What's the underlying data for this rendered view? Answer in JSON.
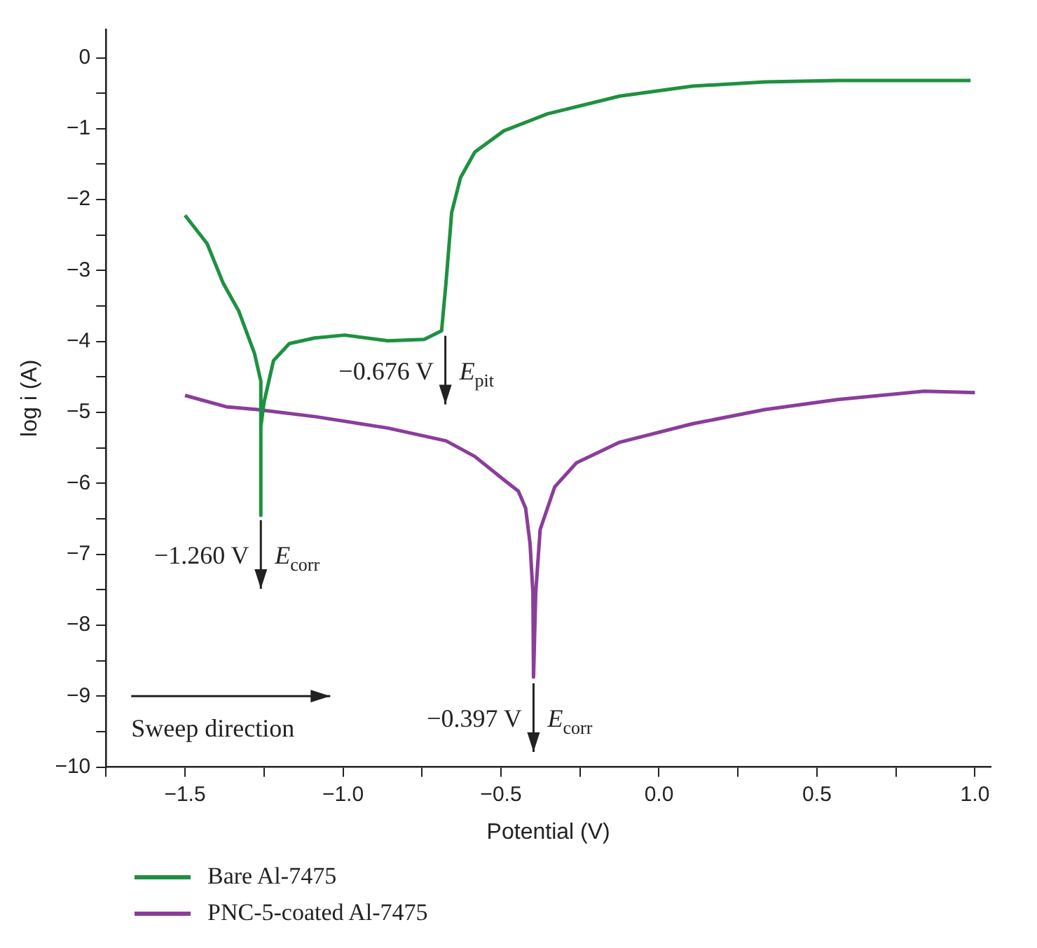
{
  "chart_data": {
    "type": "line",
    "xlabel": "Potential (V)",
    "ylabel": "log i (A)",
    "xlim": [
      -1.75,
      1.05
    ],
    "ylim": [
      -10,
      0.4
    ],
    "xticks": [
      {
        "value": -1.75,
        "label": null
      },
      {
        "value": -1.5,
        "label": "−1.5"
      },
      {
        "value": -1.25,
        "label": null
      },
      {
        "value": -1,
        "label": "−1.0"
      },
      {
        "value": -0.75,
        "label": null
      },
      {
        "value": -0.5,
        "label": "−0.5"
      },
      {
        "value": -0.25,
        "label": null
      },
      {
        "value": 0,
        "label": "0.0"
      },
      {
        "value": 0.25,
        "label": null
      },
      {
        "value": 0.5,
        "label": "0.5"
      },
      {
        "value": 0.75,
        "label": null
      },
      {
        "value": 1,
        "label": "1.0"
      }
    ],
    "yticks": [
      {
        "value": -10,
        "label": "−10"
      },
      {
        "value": -9.5,
        "label": null
      },
      {
        "value": -9,
        "label": "−9"
      },
      {
        "value": -8.5,
        "label": null
      },
      {
        "value": -8,
        "label": "−8"
      },
      {
        "value": -7.5,
        "label": null
      },
      {
        "value": -7,
        "label": "−7"
      },
      {
        "value": -6.5,
        "label": null
      },
      {
        "value": -6,
        "label": "−6"
      },
      {
        "value": -5.5,
        "label": null
      },
      {
        "value": -5,
        "label": "−5"
      },
      {
        "value": -4.5,
        "label": null
      },
      {
        "value": -4,
        "label": "−4"
      },
      {
        "value": -3.5,
        "label": null
      },
      {
        "value": -3,
        "label": "−3"
      },
      {
        "value": -2.5,
        "label": null
      },
      {
        "value": -2,
        "label": "−2"
      },
      {
        "value": -1.5,
        "label": null
      },
      {
        "value": -1,
        "label": "−1"
      },
      {
        "value": -0.5,
        "label": null
      },
      {
        "value": 0,
        "label": "0"
      }
    ],
    "grid": false,
    "legend": "bottom",
    "marker": "none",
    "line_style": "solid",
    "series": [
      {
        "name": "Bare Al-7475",
        "color": "#1e9141",
        "x": [
          -1.5,
          -1.43,
          -1.38,
          -1.33,
          -1.28,
          -1.26,
          -1.26,
          -1.26,
          -1.25,
          -1.22,
          -1.17,
          -1.09,
          -0.995,
          -0.858,
          -0.743,
          -0.688,
          -0.674,
          -0.656,
          -0.628,
          -0.583,
          -0.491,
          -0.353,
          -0.124,
          0.106,
          0.335,
          0.564,
          0.986
        ],
        "values": [
          -2.22,
          -2.62,
          -3.17,
          -3.57,
          -4.17,
          -4.56,
          -6.45,
          -5.2,
          -4.86,
          -4.27,
          -4.03,
          -3.95,
          -3.91,
          -3.99,
          -3.97,
          -3.85,
          -3.17,
          -2.18,
          -1.69,
          -1.33,
          -1.03,
          -0.79,
          -0.54,
          -0.4,
          -0.34,
          -0.32,
          -0.32
        ]
      },
      {
        "name": "PNC-5-coated Al-7475",
        "color": "#8a3d9c",
        "x": [
          -1.5,
          -1.37,
          -1.27,
          -1.087,
          -0.858,
          -0.674,
          -0.583,
          -0.491,
          -0.445,
          -0.422,
          -0.408,
          -0.399,
          -0.397,
          -0.39,
          -0.376,
          -0.33,
          -0.261,
          -0.124,
          0.106,
          0.335,
          0.564,
          0.839,
          1.0
        ],
        "values": [
          -4.76,
          -4.92,
          -4.96,
          -5.06,
          -5.22,
          -5.4,
          -5.62,
          -5.95,
          -6.11,
          -6.35,
          -6.85,
          -7.54,
          -8.73,
          -7.54,
          -6.65,
          -6.05,
          -5.71,
          -5.42,
          -5.16,
          -4.96,
          -4.82,
          -4.7,
          -4.72
        ]
      }
    ],
    "annotations": [
      {
        "text": "−0.676 V",
        "x": -0.676,
        "y": -3.9
      },
      {
        "text": "E$_{pit}$",
        "x": -0.676,
        "y": -3.9
      },
      {
        "text": "−1.260 V",
        "x": -1.26,
        "y": -6.5
      },
      {
        "text": "E$_{corr}$",
        "x": -1.26,
        "y": -6.5
      },
      {
        "text": "−0.397 V",
        "x": -0.397,
        "y": -8.8
      },
      {
        "text": "E$_{corr}$",
        "x": -0.397,
        "y": -8.8
      },
      "Sweep direction"
    ]
  }
}
